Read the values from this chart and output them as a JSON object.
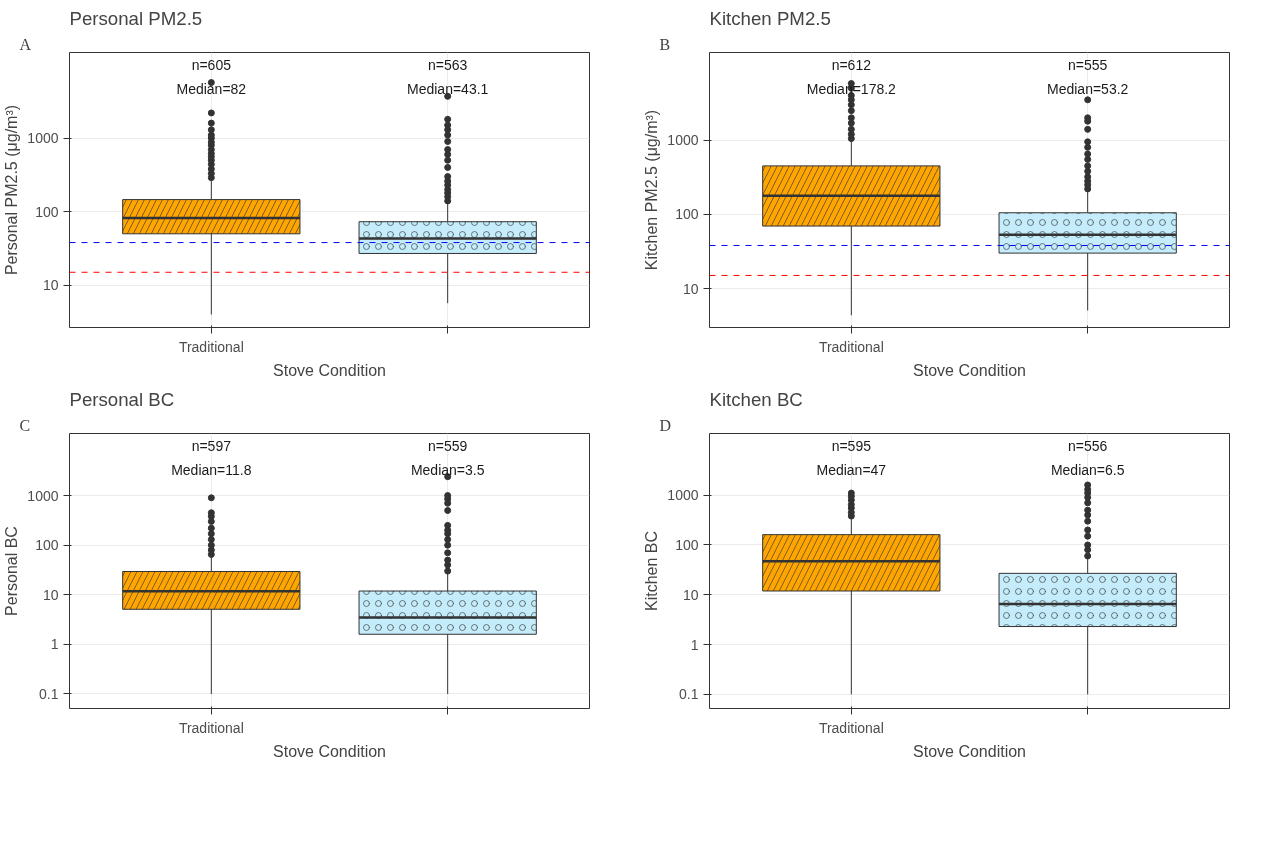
{
  "chart_data": [
    {
      "type": "box",
      "title": "Personal PM2.5",
      "xlabel": "Stove Condition",
      "ylabel": "Personal PM2.5 (μg/m³)",
      "categories": [
        "Traditional",
        null
      ],
      "colors": [
        "#ffa500",
        "#c4ecfa"
      ],
      "log": true,
      "grid": true,
      "ylim": [
        2.66,
        14600
      ],
      "yticks": [
        10,
        100,
        1000
      ],
      "boxes": [
        {
          "low": 4,
          "q1": 50,
          "median": 82,
          "q3": 146,
          "high": 263,
          "outliers": [
            290,
            330,
            380,
            440,
            500,
            560,
            620,
            700,
            800,
            880,
            1000,
            1100,
            1300,
            1600,
            2200,
            5700
          ]
        },
        {
          "low": 5.7,
          "q1": 27,
          "median": 43.1,
          "q3": 73,
          "high": 135,
          "outliers": [
            140,
            160,
            180,
            200,
            230,
            260,
            300,
            400,
            500,
            600,
            700,
            900,
            1100,
            1300,
            1500,
            1800,
            3700
          ]
        }
      ],
      "ref_lines": [
        {
          "axis": "y",
          "value": 38,
          "color": "#0000ff",
          "line_style": "dashed"
        },
        {
          "axis": "y",
          "value": 15,
          "color": "#ff0000",
          "line_style": "dashed"
        }
      ],
      "annotations": [
        "A",
        "n=605",
        "Median=82",
        "n=563",
        "Median=43.1"
      ]
    },
    {
      "type": "box",
      "title": "Kitchen PM2.5",
      "xlabel": "Stove Condition",
      "ylabel": "Kitchen PM2.5 (μg/m³)",
      "categories": [
        "Traditional",
        null
      ],
      "colors": [
        "#ffa500",
        "#c4ecfa"
      ],
      "log": true,
      "grid": true,
      "ylim": [
        2.98,
        15200
      ],
      "yticks": [
        10,
        100,
        1000
      ],
      "boxes": [
        {
          "low": 4.35,
          "q1": 69.5,
          "median": 178.2,
          "q3": 450,
          "high": 1000,
          "outliers": [
            1050,
            1200,
            1400,
            1700,
            2000,
            2500,
            3000,
            3500,
            4000,
            5000,
            5800
          ]
        },
        {
          "low": 5.06,
          "q1": 30,
          "median": 53.2,
          "q3": 105,
          "high": 210,
          "outliers": [
            220,
            250,
            280,
            320,
            380,
            450,
            550,
            650,
            800,
            950,
            1400,
            1800,
            2000,
            3500
          ]
        }
      ],
      "ref_lines": [
        {
          "axis": "y",
          "value": 38,
          "color": "#0000ff",
          "line_style": "dashed"
        },
        {
          "axis": "y",
          "value": 15,
          "color": "#ff0000",
          "line_style": "dashed"
        }
      ],
      "annotations": [
        "B",
        "n=612",
        "Median=178.2",
        "n=555",
        "Median=53.2"
      ]
    },
    {
      "type": "box",
      "title": "Personal BC",
      "xlabel": "Stove Condition",
      "ylabel": "Personal BC",
      "categories": [
        "Traditional",
        null
      ],
      "colors": [
        "#ffa500",
        "#c4ecfa"
      ],
      "log": true,
      "grid": true,
      "ylim": [
        0.051,
        17800
      ],
      "yticks": [
        0.1,
        1,
        10,
        100,
        1000
      ],
      "boxes": [
        {
          "low": 0.1,
          "q1": 5.1,
          "median": 11.8,
          "q3": 29.4,
          "high": 61,
          "outliers": [
            65,
            80,
            100,
            130,
            170,
            220,
            300,
            380,
            450,
            900
          ]
        },
        {
          "low": 0.1,
          "q1": 1.6,
          "median": 3.5,
          "q3": 11.9,
          "high": 27,
          "outliers": [
            30,
            40,
            50,
            70,
            100,
            130,
            170,
            200,
            250,
            500,
            700,
            850,
            1000,
            2400
          ]
        }
      ],
      "annotations": [
        "C",
        "n=597",
        "Median=11.8",
        "n=559",
        "Median=3.5"
      ]
    },
    {
      "type": "box",
      "title": "Kitchen BC",
      "xlabel": "Stove Condition",
      "ylabel": "Kitchen BC",
      "categories": [
        "Traditional",
        null
      ],
      "colors": [
        "#ffa500",
        "#c4ecfa"
      ],
      "log": true,
      "grid": true,
      "ylim": [
        0.052,
        17300
      ],
      "yticks": [
        0.1,
        1,
        10,
        100,
        1000
      ],
      "boxes": [
        {
          "low": 0.1,
          "q1": 11.9,
          "median": 47,
          "q3": 161,
          "high": 360,
          "outliers": [
            380,
            450,
            550,
            650,
            800,
            950,
            1100
          ]
        },
        {
          "low": 0.1,
          "q1": 2.3,
          "median": 6.5,
          "q3": 26.9,
          "high": 55,
          "outliers": [
            60,
            80,
            100,
            150,
            200,
            300,
            400,
            500,
            700,
            900,
            1100,
            1300,
            1600
          ]
        }
      ],
      "annotations": [
        "D",
        "n=595",
        "Median=47",
        "n=556",
        "Median=6.5"
      ]
    }
  ]
}
